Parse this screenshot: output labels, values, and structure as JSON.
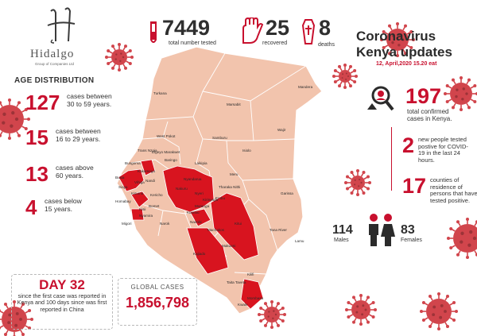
{
  "logo": {
    "name": "Hidalgo",
    "tagline": "Group of Companies Ltd"
  },
  "header": {
    "tested": {
      "value": "7449",
      "label": "total number tested"
    },
    "recovered": {
      "value": "25",
      "label": "recovered"
    },
    "deaths": {
      "value": "8",
      "label": "deaths"
    },
    "title_line1": "Coronavirus",
    "title_line2": "Kenya updates",
    "date": "12, April,2020 15.20 eat"
  },
  "age_distribution": {
    "title": "AGE DISTRIBUTION",
    "groups": [
      {
        "value": "127",
        "text": "cases between 30 to 59 years."
      },
      {
        "value": "15",
        "text": "cases between 16 to 29 years."
      },
      {
        "value": "13",
        "text": "cases above 60 years."
      },
      {
        "value": "4",
        "text": "cases below 15 years."
      }
    ]
  },
  "stats": {
    "confirmed": {
      "value": "197",
      "text": "total confirmed cases in Kenya."
    },
    "new_positive": {
      "value": "2",
      "text": "new people tested postive for COVID-19 in the last 24 hours."
    },
    "counties": {
      "value": "17",
      "text": "counties of residence of persons that have tested positive."
    },
    "males": {
      "value": "114",
      "label": "Males"
    },
    "females": {
      "value": "83",
      "label": "Females"
    }
  },
  "day": {
    "title": "DAY 32",
    "text": "since the first case was reported in Kenya and 100 days since was first reported in China"
  },
  "global": {
    "label": "GLOBAL CASES",
    "value": "1,856,798"
  },
  "map_labels": {
    "mandera": "Mandera",
    "turkana": "Turkana",
    "marsabit": "Marsabit",
    "wajir": "Wajir",
    "samburu": "Samburu",
    "isiolo": "Isiolo",
    "west_pokot": "West Pokot",
    "trans_nzoia": "Trans Nzoia",
    "elgeyo": "Elgeyo Marakwet",
    "baringo": "Baringo",
    "bungoma": "Bungoma",
    "busia": "Busia",
    "kakamega": "Kakamega",
    "nandi": "Nandi",
    "kisumu": "Kisumu",
    "kericho": "Kericho",
    "homabay": "Homabay",
    "migori": "Migori",
    "kisii": "Kisii",
    "narok": "Narok",
    "laikipia": "Laikipia",
    "meru": "Meru",
    "nyandarua": "Nyandarua",
    "nakuru": "Nakuru",
    "nyeri": "Nyeri",
    "kirinyaga": "Kirinyaga",
    "muranga": "Muranga",
    "embu": "Embu",
    "kiambu": "Kiambu",
    "nairobi": "Nairobi",
    "machakos": "Machakos",
    "kitui": "Kitui",
    "makueni": "Makueni",
    "kajiado": "Kajiado",
    "garissa": "Garissa",
    "tana_river": "Tana River",
    "lamu": "Lamu",
    "kilifi": "Kilifi",
    "taita_taveta": "Taita Taveta",
    "mombasa": "Mombasa",
    "tharaka": "Tharaka Nithi",
    "siaya": "Siaya",
    "vihiga": "Vihiga",
    "bomet": "Bomet",
    "nyamira": "Nyamira",
    "kwale": "Kwale"
  },
  "colors": {
    "accent": "#c8102e",
    "map_base": "#f2c4ad",
    "map_highlight": "#d8141f",
    "map_border": "#ffffff"
  }
}
